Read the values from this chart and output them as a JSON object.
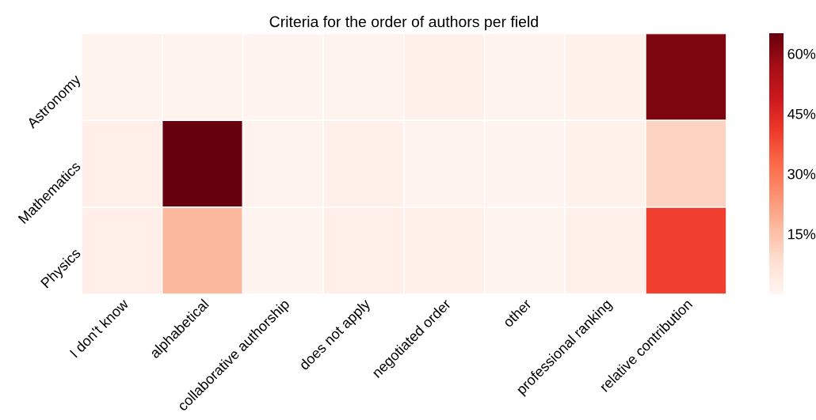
{
  "chart_data": {
    "type": "heatmap",
    "title": "Criteria for the order of authors per field",
    "categories": [
      "I don't know",
      "alphabetical",
      "collaborative authorship",
      "does not apply",
      "negotiated order",
      "other",
      "professional ranking",
      "relative contribution"
    ],
    "y_categories": [
      "Astronomy",
      "Mathematics",
      "Physics"
    ],
    "cells": [
      [
        1,
        1,
        0.5,
        1,
        2,
        1,
        1.5,
        62
      ],
      [
        2.5,
        65,
        1,
        2,
        1,
        0.5,
        1.5,
        11
      ],
      [
        2.5,
        17,
        0.5,
        2.5,
        2,
        1,
        2,
        40
      ]
    ],
    "clim": [
      0,
      65
    ],
    "cticks": [
      {
        "value": 15,
        "label": "15%"
      },
      {
        "value": 30,
        "label": "30%"
      },
      {
        "value": 45,
        "label": "45%"
      },
      {
        "value": 60,
        "label": "60%"
      }
    ]
  }
}
